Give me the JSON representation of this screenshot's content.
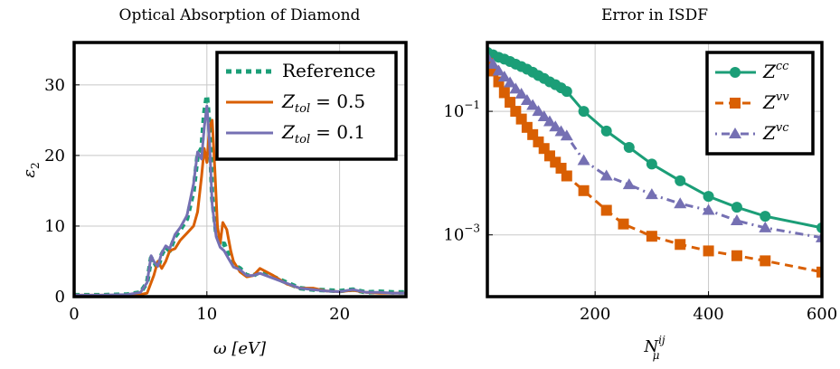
{
  "chart_data": [
    {
      "type": "line",
      "title": "Optical Absorption of Diamond",
      "xlabel": "ω [eV]",
      "ylabel": "ε",
      "ylabel_sub": "2",
      "xlim": [
        0,
        25
      ],
      "ylim": [
        0,
        36
      ],
      "xticks": [
        0,
        10,
        20
      ],
      "yticks": [
        0,
        10,
        20,
        30
      ],
      "grid": true,
      "legend_position": "top-right",
      "series": [
        {
          "name": "Reference",
          "legend_main": "Reference",
          "color": "#1b9e77",
          "dash": "dotted-thick",
          "x": [
            0,
            2,
            4,
            5,
            5.5,
            5.8,
            6,
            6.3,
            6.6,
            6.9,
            7.2,
            7.6,
            8,
            8.5,
            9,
            9.3,
            9.6,
            9.8,
            10,
            10.2,
            10.4,
            10.7,
            11,
            11.3,
            11.6,
            12,
            12.5,
            13,
            13.5,
            14,
            15,
            16,
            17,
            18,
            19,
            20,
            21,
            22,
            23,
            24,
            25
          ],
          "y": [
            0.2,
            0.2,
            0.3,
            0.6,
            2,
            5.5,
            5,
            4,
            6,
            7,
            6.5,
            8.5,
            9.5,
            11,
            15,
            20,
            21,
            26,
            28.5,
            24,
            14,
            9,
            7.5,
            7.5,
            6,
            4.5,
            4,
            3,
            3,
            3.5,
            2.8,
            2,
            1.2,
            1.0,
            0.9,
            0.8,
            1.0,
            0.6,
            0.7,
            0.6,
            0.6
          ]
        },
        {
          "name": "Z_tol = 0.5",
          "legend_main": "Z",
          "legend_sub": "tol",
          "legend_value": "= 0.5",
          "color": "#d95f02",
          "dash": "solid",
          "x": [
            0,
            2,
            4,
            5,
            5.5,
            6,
            6.3,
            6.6,
            6.9,
            7.2,
            7.6,
            8,
            8.5,
            9,
            9.3,
            9.6,
            9.8,
            10,
            10.2,
            10.4,
            10.6,
            10.8,
            11,
            11.2,
            11.5,
            11.8,
            12,
            12.5,
            13,
            13.5,
            14,
            15,
            16,
            17,
            18,
            19,
            20,
            21,
            22,
            23,
            24,
            25
          ],
          "y": [
            0.2,
            0.2,
            0.2,
            0.3,
            0.5,
            3,
            5,
            4,
            5,
            6.5,
            6.8,
            8,
            9,
            10,
            12,
            17,
            21,
            19,
            24,
            25,
            18,
            10,
            7.5,
            10.5,
            9.5,
            6.5,
            5,
            3.5,
            2.8,
            3,
            4,
            3,
            1.8,
            1.2,
            1.2,
            0.8,
            0.7,
            0.9,
            0.6,
            0.5,
            0.5,
            0.5
          ]
        },
        {
          "name": "Z_tol = 0.1",
          "legend_main": "Z",
          "legend_sub": "tol",
          "legend_value": "= 0.1",
          "color": "#7570b3",
          "dash": "solid",
          "x": [
            0,
            2,
            4,
            5,
            5.5,
            5.8,
            6,
            6.3,
            6.6,
            6.9,
            7.2,
            7.6,
            8,
            8.5,
            9,
            9.3,
            9.6,
            9.8,
            10,
            10.2,
            10.4,
            10.7,
            11,
            11.3,
            11.6,
            12,
            12.5,
            13,
            13.5,
            14,
            15,
            16,
            17,
            18,
            19,
            20,
            21,
            22,
            23,
            24,
            25
          ],
          "y": [
            0.2,
            0.2,
            0.3,
            0.6,
            2,
            5.8,
            5,
            4.3,
            6.2,
            7.2,
            6.8,
            8.8,
            9.8,
            11.5,
            16,
            20.5,
            19.5,
            24,
            27,
            22,
            13,
            8.5,
            7,
            6.5,
            5.5,
            4.2,
            3.8,
            3,
            3,
            3.3,
            2.6,
            1.9,
            1.2,
            1.0,
            0.8,
            0.7,
            1.0,
            0.6,
            0.6,
            0.5,
            0.5
          ]
        }
      ]
    },
    {
      "type": "line",
      "title": "Error in ISDF",
      "xlabel": "N",
      "xlabel_sub": "μ",
      "xlabel_sup": "ij",
      "ylabel": "",
      "yscale": "log",
      "xlim": [
        10,
        600
      ],
      "ylim": [
        0.0001,
        1.3
      ],
      "xticks": [
        200,
        400,
        600
      ],
      "yticks": [
        0.001,
        0.1
      ],
      "ytick_base": "10",
      "ytick_exps": [
        "−3",
        "−1"
      ],
      "grid": true,
      "legend_position": "top-right",
      "series": [
        {
          "name": "Z^cc",
          "legend_main": "Z",
          "legend_sup": "cc",
          "color": "#1b9e77",
          "dash": "solid",
          "marker": "circle",
          "x": [
            10,
            20,
            30,
            40,
            50,
            60,
            70,
            80,
            90,
            100,
            110,
            120,
            130,
            140,
            150,
            180,
            220,
            260,
            300,
            350,
            400,
            450,
            500,
            600
          ],
          "y": [
            0.9,
            0.82,
            0.75,
            0.7,
            0.64,
            0.58,
            0.53,
            0.48,
            0.43,
            0.38,
            0.34,
            0.3,
            0.27,
            0.24,
            0.21,
            0.1,
            0.048,
            0.026,
            0.014,
            0.0075,
            0.0042,
            0.0028,
            0.002,
            0.0013
          ]
        },
        {
          "name": "Z^vv",
          "legend_main": "Z",
          "legend_sup": "vv",
          "color": "#d95f02",
          "dash": "dashed",
          "marker": "square",
          "x": [
            10,
            20,
            30,
            40,
            50,
            60,
            70,
            80,
            90,
            100,
            110,
            120,
            130,
            140,
            150,
            180,
            220,
            250,
            300,
            350,
            400,
            450,
            500,
            600
          ],
          "y": [
            0.6,
            0.45,
            0.3,
            0.2,
            0.14,
            0.1,
            0.075,
            0.055,
            0.042,
            0.032,
            0.025,
            0.019,
            0.015,
            0.012,
            0.009,
            0.0052,
            0.0025,
            0.0015,
            0.00095,
            0.0007,
            0.00055,
            0.00046,
            0.00038,
            0.00025
          ]
        },
        {
          "name": "Z^vc",
          "legend_main": "Z",
          "legend_sup": "vc",
          "color": "#7570b3",
          "dash": "dashdot",
          "marker": "triangle",
          "x": [
            10,
            20,
            30,
            40,
            50,
            60,
            70,
            80,
            90,
            100,
            110,
            120,
            130,
            140,
            150,
            180,
            220,
            260,
            300,
            350,
            400,
            450,
            500,
            600
          ],
          "y": [
            0.75,
            0.58,
            0.45,
            0.36,
            0.29,
            0.23,
            0.19,
            0.15,
            0.125,
            0.1,
            0.082,
            0.068,
            0.056,
            0.047,
            0.04,
            0.016,
            0.009,
            0.0065,
            0.0045,
            0.0032,
            0.0025,
            0.0017,
            0.0013,
            0.0009
          ]
        }
      ]
    }
  ]
}
